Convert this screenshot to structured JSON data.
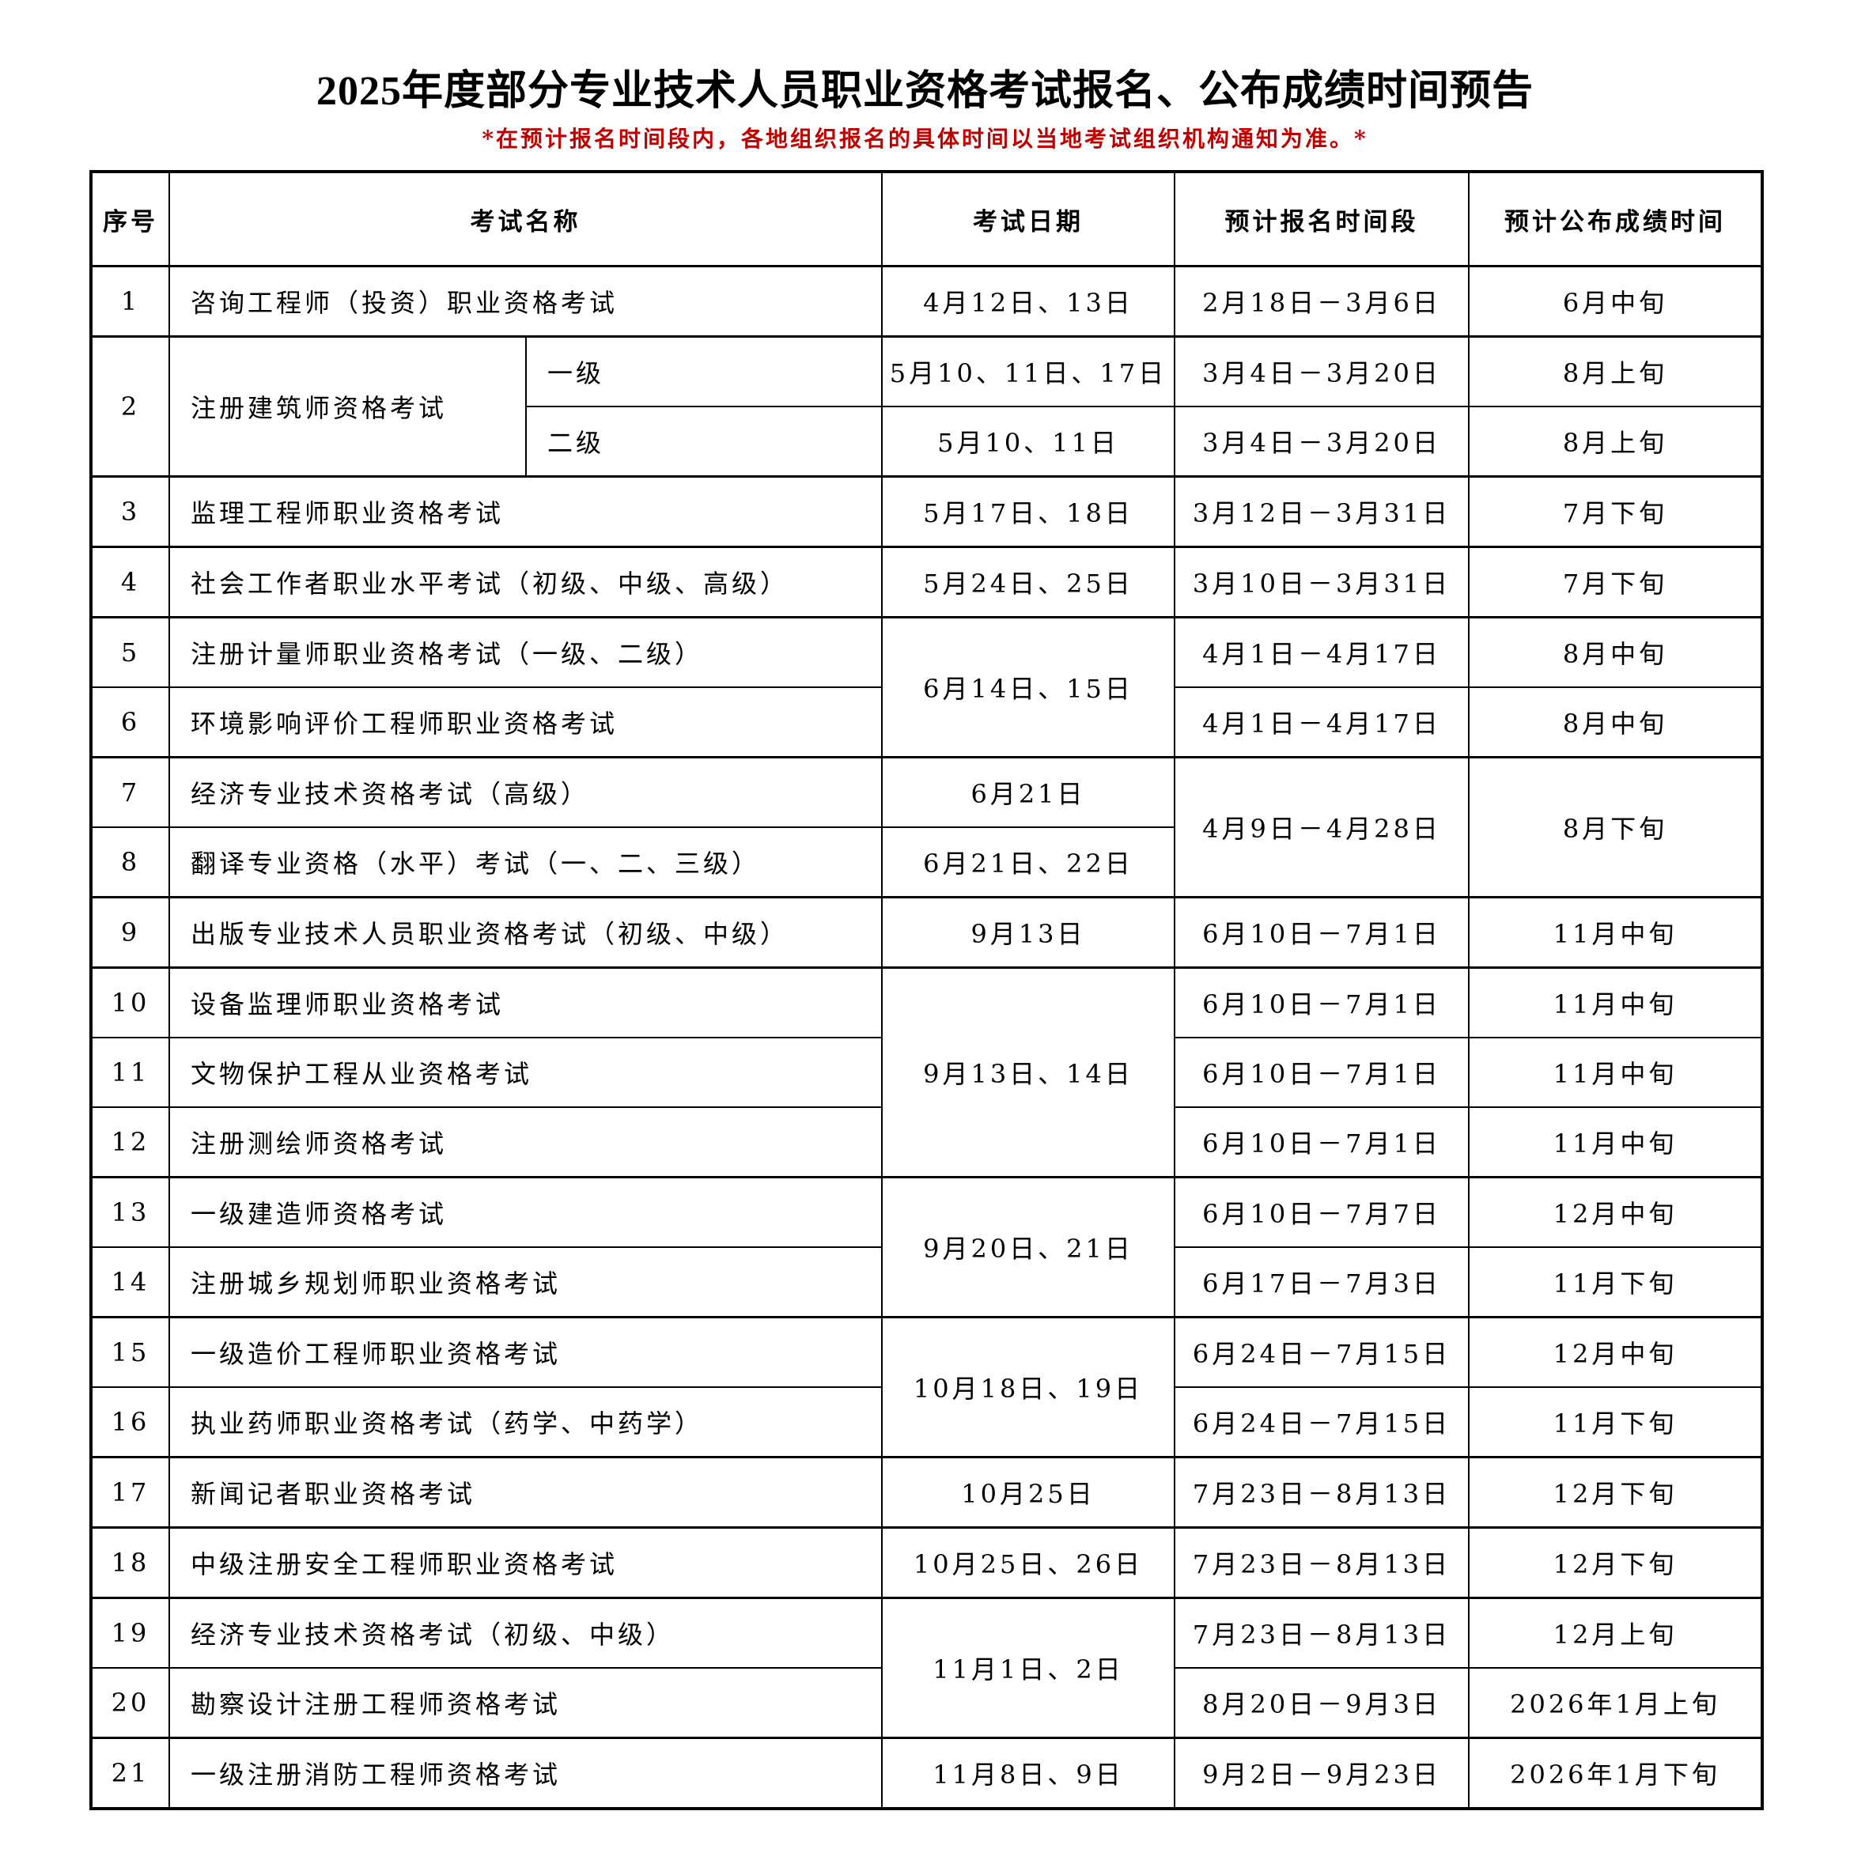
{
  "title": "2025年度部分专业技术人员职业资格考试报名、公布成绩时间预告",
  "note": "*在预计报名时间段内，各地组织报名的具体时间以当地考试组织机构通知为准。*",
  "colors": {
    "note": "#c00000",
    "border": "#000000"
  },
  "headers": {
    "seq": "序号",
    "name": "考试名称",
    "date": "考试日期",
    "reg": "预计报名时间段",
    "result": "预计公布成绩时间"
  },
  "rows": [
    {
      "seq": "1",
      "name": "咨询工程师（投资）职业资格考试",
      "date": "4月12日、13日",
      "reg": "2月18日－3月6日",
      "result": "6月中旬"
    },
    {
      "seq": "2",
      "name": "注册建筑师资格考试",
      "sub": "一级",
      "date": "5月10、11日、17日",
      "reg": "3月4日－3月20日",
      "result": "8月上旬"
    },
    {
      "sub": "二级",
      "date": "5月10、11日",
      "reg": "3月4日－3月20日",
      "result": "8月上旬"
    },
    {
      "seq": "3",
      "name": "监理工程师职业资格考试",
      "date": "5月17日、18日",
      "reg": "3月12日－3月31日",
      "result": "7月下旬"
    },
    {
      "seq": "4",
      "name": "社会工作者职业水平考试（初级、中级、高级）",
      "date": "5月24日、25日",
      "reg": "3月10日－3月31日",
      "result": "7月下旬"
    },
    {
      "seq": "5",
      "name": "注册计量师职业资格考试（一级、二级）",
      "date": "6月14日、15日",
      "reg": "4月1日－4月17日",
      "result": "8月中旬"
    },
    {
      "seq": "6",
      "name": "环境影响评价工程师职业资格考试",
      "reg": "4月1日－4月17日",
      "result": "8月中旬"
    },
    {
      "seq": "7",
      "name": "经济专业技术资格考试（高级）",
      "date": "6月21日",
      "reg": "4月9日－4月28日",
      "result": "8月下旬"
    },
    {
      "seq": "8",
      "name": "翻译专业资格（水平）考试（一、二、三级）",
      "date": "6月21日、22日"
    },
    {
      "seq": "9",
      "name": "出版专业技术人员职业资格考试（初级、中级）",
      "date": "9月13日",
      "reg": "6月10日－7月1日",
      "result": "11月中旬"
    },
    {
      "seq": "10",
      "name": "设备监理师职业资格考试",
      "date": "9月13日、14日",
      "reg": "6月10日－7月1日",
      "result": "11月中旬"
    },
    {
      "seq": "11",
      "name": "文物保护工程从业资格考试",
      "reg": "6月10日－7月1日",
      "result": "11月中旬"
    },
    {
      "seq": "12",
      "name": "注册测绘师资格考试",
      "reg": "6月10日－7月1日",
      "result": "11月中旬"
    },
    {
      "seq": "13",
      "name": "一级建造师资格考试",
      "date": "9月20日、21日",
      "reg": "6月10日－7月7日",
      "result": "12月中旬"
    },
    {
      "seq": "14",
      "name": "注册城乡规划师职业资格考试",
      "reg": "6月17日－7月3日",
      "result": "11月下旬"
    },
    {
      "seq": "15",
      "name": "一级造价工程师职业资格考试",
      "date": "10月18日、19日",
      "reg": "6月24日－7月15日",
      "result": "12月中旬"
    },
    {
      "seq": "16",
      "name": "执业药师职业资格考试（药学、中药学）",
      "reg": "6月24日－7月15日",
      "result": "11月下旬"
    },
    {
      "seq": "17",
      "name": "新闻记者职业资格考试",
      "date": "10月25日",
      "reg": "7月23日－8月13日",
      "result": "12月下旬"
    },
    {
      "seq": "18",
      "name": "中级注册安全工程师职业资格考试",
      "date": "10月25日、26日",
      "reg": "7月23日－8月13日",
      "result": "12月下旬"
    },
    {
      "seq": "19",
      "name": "经济专业技术资格考试（初级、中级）",
      "date": "11月1日、2日",
      "reg": "7月23日－8月13日",
      "result": "12月上旬"
    },
    {
      "seq": "20",
      "name": "勘察设计注册工程师资格考试",
      "reg": "8月20日－9月3日",
      "result": "2026年1月上旬"
    },
    {
      "seq": "21",
      "name": "一级注册消防工程师资格考试",
      "date": "11月8日、9日",
      "reg": "9月2日－9月23日",
      "result": "2026年1月下旬"
    }
  ]
}
